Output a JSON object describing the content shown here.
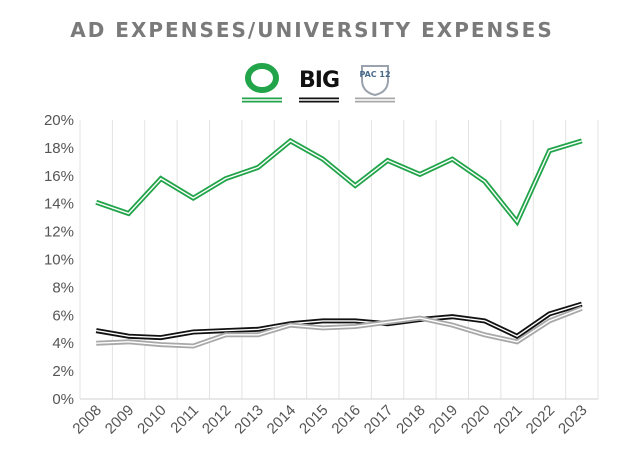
{
  "chart_data": {
    "type": "line",
    "title": "AD EXPENSES/UNIVERSITY EXPENSES",
    "xlabel": "",
    "ylabel": "",
    "categories": [
      "2008",
      "2009",
      "2010",
      "2011",
      "2012",
      "2013",
      "2014",
      "2015",
      "2016",
      "2017",
      "2018",
      "2019",
      "2020",
      "2021",
      "2022",
      "2023"
    ],
    "ylim": [
      0,
      20
    ],
    "y_ticks": [
      "0%",
      "2%",
      "4%",
      "6%",
      "8%",
      "10%",
      "12%",
      "14%",
      "16%",
      "18%",
      "20%"
    ],
    "grid": "vertical",
    "legend": {
      "placement": "top-center",
      "style": "logos"
    },
    "series": [
      {
        "logo": "oregon-o-logo",
        "logo_text": "O",
        "color": "#22a44a",
        "values": [
          14.1,
          13.3,
          15.8,
          14.4,
          15.8,
          16.6,
          18.5,
          17.2,
          15.3,
          17.1,
          16.1,
          17.2,
          15.6,
          12.7,
          17.8,
          18.5
        ]
      },
      {
        "logo": "big-ten-logo",
        "logo_text": "BIG",
        "color": "#111111",
        "values": [
          4.9,
          4.5,
          4.4,
          4.8,
          4.9,
          5.0,
          5.4,
          5.6,
          5.6,
          5.4,
          5.7,
          5.9,
          5.6,
          4.5,
          6.1,
          6.8
        ]
      },
      {
        "logo": "pac-12-logo",
        "logo_text": "PAC 12",
        "color": "#a8a8a8",
        "values": [
          4.0,
          4.1,
          3.9,
          3.8,
          4.6,
          4.6,
          5.3,
          5.1,
          5.2,
          5.5,
          5.8,
          5.3,
          4.6,
          4.1,
          5.6,
          6.5
        ]
      }
    ]
  }
}
